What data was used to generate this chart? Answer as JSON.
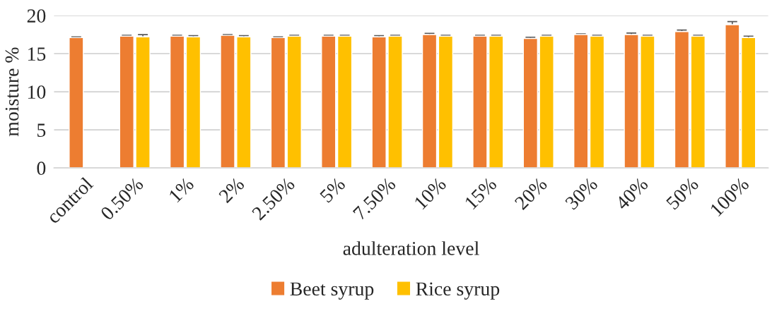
{
  "chart_data": {
    "type": "bar",
    "xlabel": "adulteration level",
    "ylabel": "moisture %",
    "categories": [
      "control",
      "0.50%",
      "1%",
      "2%",
      "2.50%",
      "5%",
      "7.50%",
      "10%",
      "15%",
      "20%",
      "30%",
      "40%",
      "50%",
      "100%"
    ],
    "series": [
      {
        "name": "Beet syrup",
        "color": "#ed7d31",
        "values": [
          17.1,
          17.3,
          17.3,
          17.4,
          17.1,
          17.3,
          17.2,
          17.5,
          17.3,
          17.0,
          17.5,
          17.5,
          17.9,
          18.8
        ],
        "errors": [
          0.1,
          0.1,
          0.1,
          0.1,
          0.1,
          0.1,
          0.15,
          0.15,
          0.1,
          0.15,
          0.1,
          0.2,
          0.2,
          0.4
        ]
      },
      {
        "name": "Rice syrup",
        "color": "#ffc000",
        "values": [
          null,
          17.2,
          17.2,
          17.2,
          17.3,
          17.3,
          17.3,
          17.3,
          17.3,
          17.3,
          17.3,
          17.3,
          17.3,
          17.1
        ],
        "errors": [
          null,
          0.3,
          0.15,
          0.15,
          0.1,
          0.1,
          0.1,
          0.1,
          0.1,
          0.1,
          0.1,
          0.1,
          0.1,
          0.2
        ]
      }
    ],
    "ylim": [
      0,
      20
    ],
    "yticks": [
      0,
      5,
      10,
      15,
      20
    ],
    "grid": "y",
    "legend": "bottom"
  }
}
